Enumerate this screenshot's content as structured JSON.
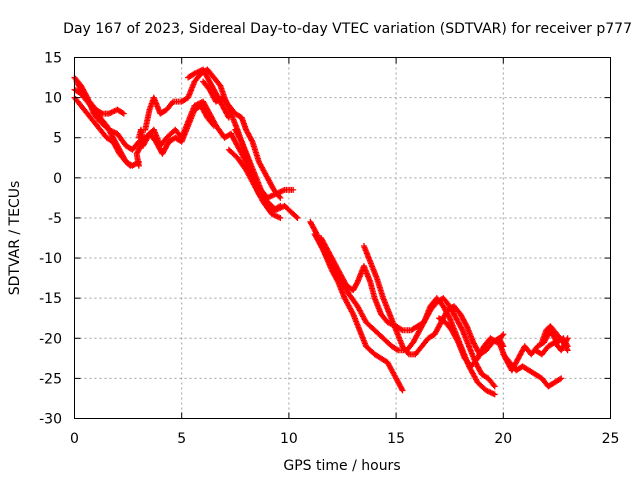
{
  "chart_data": {
    "type": "scatter",
    "title": "Day 167 of 2023, Sidereal Day-to-day VTEC variation (SDTVAR) for receiver p777",
    "xlabel": "GPS time / hours",
    "ylabel": "SDTVAR / TECUs",
    "xlim": [
      0,
      25
    ],
    "ylim": [
      -30,
      15
    ],
    "xticks": [
      0,
      5,
      10,
      15,
      20,
      25
    ],
    "xtick_labels": [
      "0",
      "5",
      "10",
      "15",
      "20",
      "25"
    ],
    "yticks": [
      15,
      10,
      5,
      0,
      -5,
      -10,
      -15,
      -20,
      -25,
      -30
    ],
    "ytick_labels": [
      "15",
      "10",
      "5",
      "0",
      "-5",
      "-10",
      "-15",
      "-20",
      "-25",
      "-30"
    ],
    "grid": true,
    "marker": "+",
    "series": [
      {
        "name": "SDTVAR",
        "color": "#ff0000",
        "tracks": [
          [
            [
              0.0,
              12.5
            ],
            [
              0.3,
              11.5
            ],
            [
              0.6,
              10.0
            ],
            [
              0.9,
              8.0
            ],
            [
              1.2,
              7.0
            ],
            [
              1.6,
              6.0
            ],
            [
              2.0,
              5.5
            ],
            [
              2.4,
              4.0
            ],
            [
              2.7,
              3.5
            ],
            [
              3.0,
              4.5
            ],
            [
              3.3,
              5.0
            ],
            [
              3.7,
              6.0
            ],
            [
              4.0,
              4.0
            ],
            [
              4.3,
              5.0
            ],
            [
              4.7,
              6.0
            ],
            [
              5.0,
              5.0
            ],
            [
              5.3,
              7.0
            ],
            [
              5.6,
              9.0
            ],
            [
              6.0,
              9.5
            ],
            [
              6.3,
              8.0
            ],
            [
              6.6,
              6.5
            ],
            [
              7.0,
              5.0
            ],
            [
              7.3,
              5.5
            ],
            [
              7.6,
              4.0
            ],
            [
              8.0,
              2.0
            ],
            [
              8.3,
              0.0
            ],
            [
              8.6,
              -2.0
            ],
            [
              9.0,
              -3.0
            ],
            [
              9.3,
              -4.0
            ],
            [
              9.6,
              -3.5
            ]
          ],
          [
            [
              0.0,
              11.0
            ],
            [
              0.3,
              10.5
            ],
            [
              0.6,
              9.5
            ],
            [
              0.9,
              8.5
            ],
            [
              1.2,
              7.5
            ],
            [
              1.5,
              6.5
            ],
            [
              1.8,
              5.0
            ],
            [
              2.1,
              3.5
            ],
            [
              2.4,
              2.0
            ],
            [
              2.6,
              1.5
            ]
          ],
          [
            [
              0.1,
              12.0
            ],
            [
              0.4,
              10.5
            ],
            [
              0.7,
              9.5
            ],
            [
              1.0,
              8.5
            ],
            [
              1.3,
              8.0
            ],
            [
              1.6,
              8.0
            ],
            [
              2.0,
              8.5
            ],
            [
              2.3,
              8.0
            ]
          ],
          [
            [
              0.0,
              10.0
            ],
            [
              0.3,
              9.0
            ],
            [
              0.6,
              8.0
            ],
            [
              0.9,
              7.0
            ],
            [
              1.2,
              6.0
            ],
            [
              1.5,
              5.0
            ],
            [
              1.8,
              4.5
            ],
            [
              2.1,
              3.0
            ],
            [
              2.4,
              2.0
            ],
            [
              2.7,
              1.5
            ],
            [
              3.0,
              2.0
            ]
          ],
          [
            [
              3.2,
              4.0
            ],
            [
              3.5,
              5.5
            ],
            [
              3.8,
              4.5
            ],
            [
              4.1,
              3.0
            ],
            [
              4.4,
              4.5
            ],
            [
              4.7,
              5.0
            ],
            [
              5.0,
              4.5
            ],
            [
              5.3,
              6.5
            ],
            [
              5.6,
              8.5
            ],
            [
              5.9,
              9.0
            ],
            [
              6.2,
              7.5
            ],
            [
              6.5,
              6.5
            ]
          ],
          [
            [
              3.3,
              6.0
            ],
            [
              3.5,
              8.5
            ],
            [
              3.7,
              10.0
            ],
            [
              4.0,
              8.0
            ],
            [
              4.3,
              8.5
            ],
            [
              4.6,
              9.5
            ],
            [
              5.0,
              9.5
            ],
            [
              5.3,
              10.0
            ],
            [
              5.6,
              12.0
            ],
            [
              5.9,
              13.0
            ],
            [
              6.2,
              13.5
            ],
            [
              6.5,
              12.5
            ],
            [
              6.8,
              11.5
            ],
            [
              7.0,
              10.0
            ],
            [
              7.3,
              8.0
            ],
            [
              7.6,
              6.0
            ],
            [
              8.0,
              3.0
            ],
            [
              8.3,
              0.5
            ],
            [
              8.6,
              -1.5
            ],
            [
              9.0,
              -3.0
            ],
            [
              9.4,
              -4.0
            ],
            [
              9.8,
              -3.5
            ],
            [
              10.2,
              -4.5
            ],
            [
              10.4,
              -5.0
            ]
          ],
          [
            [
              5.3,
              12.5
            ],
            [
              5.6,
              13.0
            ],
            [
              6.0,
              13.5
            ],
            [
              6.3,
              12.0
            ],
            [
              6.6,
              10.5
            ],
            [
              6.9,
              9.0
            ],
            [
              7.2,
              7.5
            ]
          ],
          [
            [
              6.0,
              12.0
            ],
            [
              6.3,
              11.0
            ],
            [
              6.6,
              9.5
            ],
            [
              6.9,
              10.0
            ],
            [
              7.2,
              9.0
            ],
            [
              7.5,
              8.0
            ],
            [
              7.8,
              7.5
            ],
            [
              8.0,
              6.0
            ],
            [
              8.3,
              4.5
            ],
            [
              8.6,
              2.0
            ],
            [
              9.0,
              0.0
            ],
            [
              9.3,
              -1.5
            ],
            [
              9.6,
              -2.5
            ]
          ],
          [
            [
              7.5,
              6.0
            ],
            [
              7.8,
              4.5
            ],
            [
              8.1,
              2.5
            ],
            [
              8.4,
              0.5
            ],
            [
              8.7,
              -1.5
            ],
            [
              9.0,
              -2.5
            ],
            [
              9.4,
              -2.0
            ],
            [
              9.8,
              -1.5
            ],
            [
              10.2,
              -1.5
            ]
          ],
          [
            [
              7.2,
              3.5
            ],
            [
              7.6,
              2.5
            ],
            [
              8.0,
              1.0
            ],
            [
              8.4,
              -1.0
            ],
            [
              8.8,
              -3.0
            ],
            [
              9.2,
              -4.5
            ],
            [
              9.6,
              -5.0
            ]
          ],
          [
            [
              11.0,
              -5.5
            ],
            [
              11.3,
              -7.0
            ],
            [
              11.6,
              -9.0
            ],
            [
              12.0,
              -11.5
            ],
            [
              12.3,
              -13.0
            ],
            [
              12.6,
              -15.0
            ],
            [
              13.0,
              -17.0
            ],
            [
              13.3,
              -19.0
            ],
            [
              13.6,
              -21.0
            ],
            [
              14.0,
              -22.0
            ],
            [
              14.3,
              -22.5
            ],
            [
              14.6,
              -23.0
            ],
            [
              15.0,
              -25.0
            ],
            [
              15.3,
              -26.5
            ]
          ],
          [
            [
              11.2,
              -7.0
            ],
            [
              11.5,
              -8.5
            ],
            [
              11.8,
              -10.0
            ],
            [
              12.1,
              -11.5
            ],
            [
              12.4,
              -12.5
            ],
            [
              12.8,
              -14.5
            ],
            [
              13.2,
              -16.0
            ],
            [
              13.6,
              -18.0
            ],
            [
              14.0,
              -19.0
            ],
            [
              14.4,
              -20.0
            ],
            [
              14.8,
              -21.0
            ],
            [
              15.1,
              -21.5
            ],
            [
              15.5,
              -21.5
            ],
            [
              15.8,
              -20.5
            ],
            [
              16.0,
              -19.5
            ],
            [
              16.3,
              -18.0
            ],
            [
              16.6,
              -16.0
            ],
            [
              16.9,
              -15.0
            ],
            [
              17.2,
              -16.0
            ],
            [
              17.5,
              -17.5
            ],
            [
              17.8,
              -19.5
            ],
            [
              18.1,
              -21.5
            ],
            [
              18.4,
              -23.5
            ],
            [
              18.8,
              -25.5
            ],
            [
              19.2,
              -26.5
            ],
            [
              19.6,
              -27.0
            ]
          ],
          [
            [
              11.5,
              -7.5
            ],
            [
              11.8,
              -9.0
            ],
            [
              12.1,
              -10.5
            ],
            [
              12.4,
              -12.0
            ],
            [
              12.7,
              -13.5
            ],
            [
              13.0,
              -14.0
            ],
            [
              13.2,
              -13.0
            ],
            [
              13.5,
              -11.0
            ],
            [
              13.8,
              -13.0
            ],
            [
              14.0,
              -15.0
            ],
            [
              14.3,
              -17.0
            ],
            [
              14.6,
              -18.0
            ],
            [
              15.0,
              -18.5
            ],
            [
              15.3,
              -19.0
            ],
            [
              15.7,
              -19.0
            ],
            [
              16.0,
              -18.5
            ],
            [
              16.3,
              -18.0
            ],
            [
              16.6,
              -16.5
            ],
            [
              16.9,
              -15.5
            ],
            [
              17.2,
              -15.0
            ],
            [
              17.5,
              -16.0
            ],
            [
              17.8,
              -17.5
            ],
            [
              18.1,
              -19.0
            ],
            [
              18.4,
              -21.0
            ],
            [
              18.7,
              -23.0
            ],
            [
              19.0,
              -24.5
            ],
            [
              19.3,
              -25.0
            ],
            [
              19.6,
              -26.0
            ]
          ],
          [
            [
              13.5,
              -8.5
            ],
            [
              13.8,
              -10.5
            ],
            [
              14.1,
              -12.5
            ],
            [
              14.4,
              -15.0
            ],
            [
              14.7,
              -17.0
            ],
            [
              15.0,
              -19.0
            ],
            [
              15.3,
              -21.0
            ],
            [
              15.6,
              -22.0
            ],
            [
              15.9,
              -22.0
            ],
            [
              16.2,
              -21.0
            ],
            [
              16.5,
              -20.0
            ],
            [
              16.8,
              -19.5
            ],
            [
              17.1,
              -18.0
            ],
            [
              17.4,
              -16.5
            ],
            [
              17.7,
              -16.0
            ],
            [
              18.0,
              -17.0
            ],
            [
              18.3,
              -18.5
            ],
            [
              18.6,
              -20.5
            ],
            [
              18.9,
              -22.0
            ],
            [
              19.2,
              -21.5
            ],
            [
              19.5,
              -20.5
            ],
            [
              19.8,
              -20.0
            ],
            [
              20.0,
              -21.0
            ]
          ],
          [
            [
              17.0,
              -17.5
            ],
            [
              17.3,
              -18.0
            ],
            [
              17.6,
              -19.0
            ],
            [
              17.9,
              -20.5
            ],
            [
              18.2,
              -22.5
            ],
            [
              18.5,
              -23.5
            ],
            [
              18.8,
              -22.5
            ],
            [
              19.1,
              -21.0
            ],
            [
              19.4,
              -20.0
            ],
            [
              19.7,
              -20.5
            ],
            [
              20.0,
              -19.5
            ]
          ],
          [
            [
              19.8,
              -20.5
            ],
            [
              20.1,
              -22.5
            ],
            [
              20.4,
              -24.0
            ],
            [
              20.7,
              -22.5
            ],
            [
              21.0,
              -21.0
            ],
            [
              21.3,
              -22.0
            ],
            [
              21.6,
              -21.0
            ],
            [
              21.9,
              -20.5
            ],
            [
              22.2,
              -19.0
            ],
            [
              22.5,
              -20.5
            ],
            [
              22.8,
              -20.0
            ],
            [
              23.0,
              -21.0
            ]
          ],
          [
            [
              20.0,
              -22.0
            ],
            [
              20.3,
              -23.0
            ],
            [
              20.6,
              -24.0
            ],
            [
              20.9,
              -23.5
            ],
            [
              21.2,
              -24.0
            ],
            [
              21.5,
              -24.5
            ],
            [
              21.8,
              -25.0
            ],
            [
              22.1,
              -26.0
            ],
            [
              22.4,
              -25.5
            ],
            [
              22.7,
              -25.0
            ]
          ],
          [
            [
              21.5,
              -21.5
            ],
            [
              21.8,
              -22.0
            ],
            [
              22.1,
              -21.0
            ],
            [
              22.4,
              -20.5
            ],
            [
              22.7,
              -21.5
            ],
            [
              23.0,
              -20.0
            ]
          ],
          [
            [
              21.8,
              -20.5
            ],
            [
              22.0,
              -19.0
            ],
            [
              22.2,
              -18.5
            ],
            [
              22.5,
              -19.5
            ],
            [
              22.8,
              -20.5
            ],
            [
              23.0,
              -21.5
            ]
          ],
          [
            [
              3.0,
              5.0
            ],
            [
              3.1,
              6.0
            ],
            [
              3.2,
              4.5
            ],
            [
              2.9,
              3.0
            ],
            [
              3.0,
              1.5
            ]
          ]
        ]
      }
    ]
  }
}
